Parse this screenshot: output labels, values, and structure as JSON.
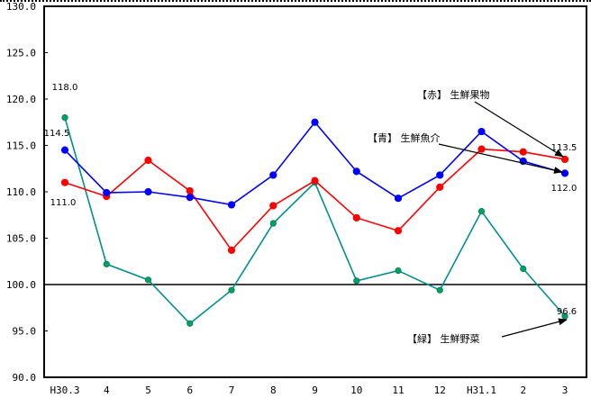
{
  "chart_data": {
    "type": "line",
    "title": "",
    "xlabel": "",
    "ylabel": "",
    "ylim": [
      90,
      130
    ],
    "yticks": [
      "130.0",
      "125.0",
      "120.0",
      "115.0",
      "110.0",
      "105.0",
      "100.0",
      "95.0",
      "90.0"
    ],
    "grid": false,
    "reference_line": 100.0,
    "categories": [
      "H30.3",
      "4",
      "5",
      "6",
      "7",
      "8",
      "9",
      "10",
      "11",
      "12",
      "H31.1",
      "2",
      "3"
    ],
    "series": [
      {
        "name": "生鮮魚介",
        "annotation": "【青】 生鮮魚介",
        "color": "#0000ff",
        "values": [
          114.5,
          109.9,
          110.0,
          109.4,
          108.6,
          111.8,
          117.5,
          112.2,
          109.3,
          111.8,
          116.5,
          113.3,
          112.0
        ]
      },
      {
        "name": "生鮮果物",
        "annotation": "【赤】 生鮮果物",
        "color": "#ff0000",
        "values": [
          111.0,
          109.5,
          113.4,
          110.1,
          103.7,
          108.5,
          111.2,
          107.2,
          105.8,
          110.5,
          114.6,
          114.3,
          113.5
        ]
      },
      {
        "name": "生鮮野菜",
        "annotation": "【緑】 生鮮野菜",
        "color": "#009090",
        "marker_color": "#00a060",
        "values": [
          118.0,
          102.2,
          100.5,
          95.8,
          99.4,
          106.6,
          111.0,
          100.4,
          101.5,
          99.4,
          107.9,
          101.7,
          96.6
        ]
      }
    ],
    "data_labels": [
      {
        "series": "生鮮野菜",
        "index": 0,
        "text": "118.0"
      },
      {
        "series": "生鮮魚介",
        "index": 0,
        "text": "114.5"
      },
      {
        "series": "生鮮果物",
        "index": 0,
        "text": "111.0"
      },
      {
        "series": "生鮮果物",
        "index": 12,
        "text": "113.5"
      },
      {
        "series": "生鮮魚介",
        "index": 12,
        "text": "112.0"
      },
      {
        "series": "生鮮野菜",
        "index": 12,
        "text": "96.6"
      }
    ]
  }
}
